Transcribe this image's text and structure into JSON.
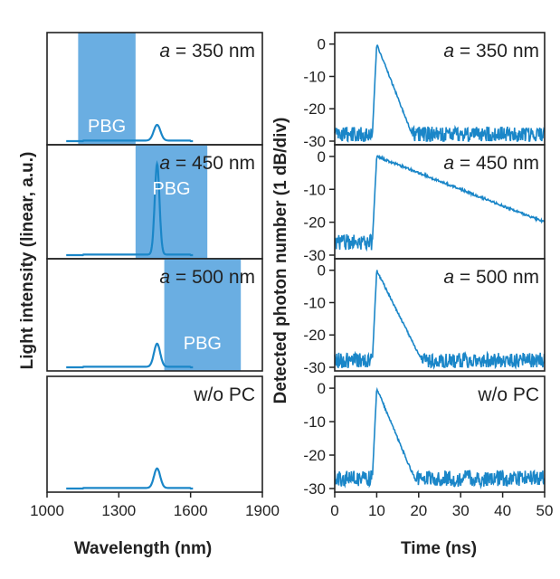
{
  "colors": {
    "trace": "#1a86c8",
    "pbg": "#6aaee2",
    "axis": "#222222"
  },
  "chart_data": [
    {
      "type": "line",
      "ylabel": "Light intensity (linear, a.u.)",
      "xlabel": "Wavelength (nm)",
      "xlim": [
        1000,
        1900
      ],
      "xticks": [
        "1000",
        "1300",
        "1600",
        "1900"
      ],
      "panels": [
        {
          "label_prefix": "a",
          "label_rest": " = 350 nm",
          "pbg_label": "PBG",
          "pbg_range": [
            1130,
            1370
          ],
          "peak_height": 0.15,
          "peak_width": 14
        },
        {
          "label_prefix": "a",
          "label_rest": " = 450 nm",
          "pbg_label": "PBG",
          "pbg_range": [
            1370,
            1670
          ],
          "peak_height": 0.85,
          "peak_width": 10
        },
        {
          "label_prefix": "a",
          "label_rest": " = 500 nm",
          "pbg_label": "PBG",
          "pbg_range": [
            1490,
            1810
          ],
          "peak_height": 0.22,
          "peak_width": 13
        },
        {
          "label_prefix": "",
          "label_rest": "w/o PC",
          "pbg_label": "",
          "pbg_range": null,
          "peak_height": 0.18,
          "peak_width": 13
        }
      ],
      "peak_center": 1460,
      "trace_range": [
        1080,
        1610
      ]
    },
    {
      "type": "line",
      "ylabel": "Detected photon number (1 dB/div)",
      "xlabel": "Time (ns)",
      "xlim": [
        0,
        50
      ],
      "ylim": [
        -30,
        3
      ],
      "xticks": [
        "0",
        "10",
        "20",
        "30",
        "40",
        "50"
      ],
      "yticks": [
        "0",
        "-10",
        "-20",
        "-30"
      ],
      "panels": [
        {
          "label_prefix": "a",
          "label_rest": " = 350 nm",
          "rise_time": 9,
          "peak_time": 10,
          "decay_per_ns": 3.3,
          "noise_floor": -27
        },
        {
          "label_prefix": "a",
          "label_rest": " = 450 nm",
          "rise_time": 9,
          "peak_time": 10,
          "decay_per_ns": 0.5,
          "noise_floor": -25
        },
        {
          "label_prefix": "a",
          "label_rest": " = 500 nm",
          "rise_time": 9,
          "peak_time": 10,
          "decay_per_ns": 2.6,
          "noise_floor": -27
        },
        {
          "label_prefix": "",
          "label_rest": "w/o PC",
          "rise_time": 9,
          "peak_time": 10,
          "decay_per_ns": 3.0,
          "noise_floor": -26
        }
      ]
    }
  ]
}
